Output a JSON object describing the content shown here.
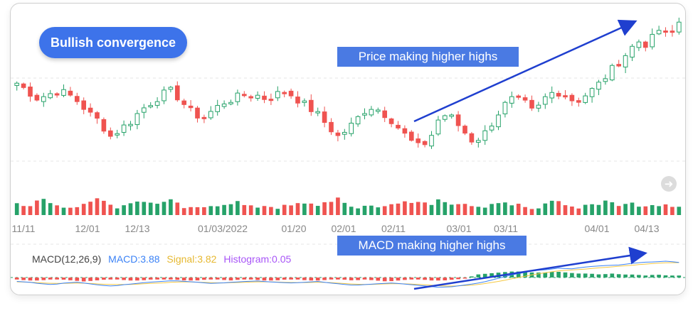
{
  "badge": "Bullish convergence",
  "callouts": {
    "price": "Price making higher highs",
    "macd": "MACD making higher highs"
  },
  "macd_legend": {
    "params": "MACD(12,26,9)",
    "macd": "MACD:3.88",
    "signal": "Signal:3.82",
    "histogram": "Histogram:0.05"
  },
  "nav_icon": "arrow-right-icon",
  "colors": {
    "up": "#26a269",
    "down": "#ef5350",
    "macd_line": "#3b82f6",
    "signal_line": "#f5c842",
    "histogram_label": "#a855f7",
    "annotation": "#1f3fcf",
    "badge_bg": "#3d73ea"
  },
  "chart_data": {
    "type": "candlestick",
    "x_tick_labels": [
      "11/11",
      "12/01",
      "12/13",
      "01/03/2022",
      "01/20",
      "02/01",
      "02/11",
      "03/01",
      "03/11",
      "04/01",
      "04/13"
    ],
    "price_trend_close": [
      38,
      36,
      34,
      35,
      36,
      35,
      33,
      30,
      28,
      24,
      26,
      28,
      31,
      33,
      35,
      36,
      33,
      30,
      29,
      31,
      33,
      34,
      35,
      35,
      34,
      35,
      36,
      34,
      32,
      30,
      27,
      24,
      26,
      29,
      32,
      31,
      29,
      26,
      23,
      21,
      24,
      30,
      29,
      26,
      23,
      24,
      28,
      32,
      34,
      33,
      30,
      34,
      36,
      35,
      33,
      35,
      37,
      40,
      43,
      46,
      49,
      48,
      52,
      50,
      54
    ],
    "volume_trend": [
      3,
      2,
      5,
      4,
      3,
      2,
      3,
      4,
      6,
      3,
      2,
      3,
      4,
      3,
      3,
      5,
      2,
      3,
      2,
      3,
      3,
      4,
      3,
      2,
      3,
      2,
      3,
      3,
      4,
      3,
      4,
      5,
      3,
      2,
      3,
      2,
      3,
      4,
      3,
      4,
      3,
      5,
      3,
      4,
      3,
      2,
      3,
      4,
      3,
      3,
      2,
      3,
      4,
      3,
      2,
      3,
      3,
      4,
      3,
      4,
      3,
      2,
      3,
      3,
      2
    ],
    "macd_trend": [
      -1.0,
      -1.2,
      -1.6,
      -1.8,
      -1.4,
      -1.2,
      -1.6,
      -2.0,
      -2.2,
      -1.8,
      -1.5,
      -1.2,
      -1.0,
      -0.8,
      -1.0,
      -1.2,
      -1.5,
      -1.4,
      -1.2,
      -1.0,
      -0.9,
      -1.1,
      -1.3,
      -1.4,
      -1.2,
      -1.0,
      -1.4,
      -1.7,
      -2.0,
      -1.8,
      -1.6,
      -1.4,
      -1.6,
      -1.9,
      -2.2,
      -2.5,
      -2.4,
      -2.0,
      -1.6,
      -1.0,
      -0.2,
      0.6,
      1.2,
      1.8,
      2.0,
      2.4,
      2.2,
      2.6,
      2.9,
      3.1,
      3.2,
      3.6,
      3.9,
      4.0,
      4.2,
      3.88
    ],
    "signal_trend": [
      -1.1,
      -1.2,
      -1.4,
      -1.5,
      -1.5,
      -1.4,
      -1.5,
      -1.7,
      -1.8,
      -1.8,
      -1.7,
      -1.5,
      -1.4,
      -1.2,
      -1.1,
      -1.2,
      -1.3,
      -1.4,
      -1.3,
      -1.2,
      -1.1,
      -1.1,
      -1.2,
      -1.3,
      -1.3,
      -1.2,
      -1.3,
      -1.5,
      -1.7,
      -1.8,
      -1.7,
      -1.6,
      -1.6,
      -1.7,
      -1.9,
      -2.1,
      -2.2,
      -2.1,
      -1.9,
      -1.5,
      -1.0,
      -0.4,
      0.2,
      0.8,
      1.3,
      1.7,
      1.9,
      2.1,
      2.4,
      2.6,
      2.9,
      3.1,
      3.4,
      3.6,
      3.8,
      3.82
    ],
    "histogram_trend": [
      -2,
      -3,
      -3,
      -2,
      -2,
      -3,
      -4,
      -3,
      -2,
      -2,
      -3,
      -3,
      -2,
      -2,
      -2,
      -3,
      -3,
      -2,
      -2,
      -3,
      -2,
      -2,
      -3,
      -3,
      -2,
      -2,
      -3,
      -3,
      -2,
      -2,
      -3,
      -2,
      -3,
      -4,
      -3,
      -2,
      -2,
      -3,
      -3,
      -2,
      -1,
      3,
      4,
      5,
      6,
      6,
      5,
      5,
      6,
      5,
      4,
      4,
      3,
      4,
      3,
      3,
      2,
      3,
      2,
      2
    ],
    "annotations": [
      "Price making higher highs",
      "MACD making higher highs"
    ]
  }
}
